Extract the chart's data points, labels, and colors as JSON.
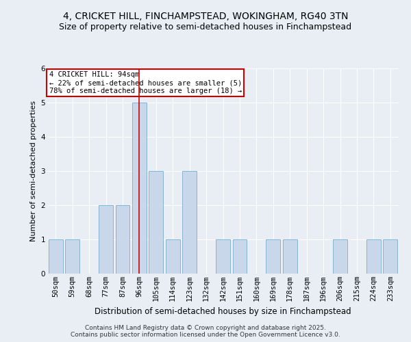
{
  "title1": "4, CRICKET HILL, FINCHAMPSTEAD, WOKINGHAM, RG40 3TN",
  "title2": "Size of property relative to semi-detached houses in Finchampstead",
  "xlabel": "Distribution of semi-detached houses by size in Finchampstead",
  "ylabel": "Number of semi-detached properties",
  "categories": [
    "50sqm",
    "59sqm",
    "68sqm",
    "77sqm",
    "87sqm",
    "96sqm",
    "105sqm",
    "114sqm",
    "123sqm",
    "132sqm",
    "142sqm",
    "151sqm",
    "160sqm",
    "169sqm",
    "178sqm",
    "187sqm",
    "196sqm",
    "206sqm",
    "215sqm",
    "224sqm",
    "233sqm"
  ],
  "values": [
    1,
    1,
    0,
    2,
    2,
    5,
    3,
    1,
    3,
    0,
    1,
    1,
    0,
    1,
    1,
    0,
    0,
    1,
    0,
    1,
    1
  ],
  "highlight_index": 5,
  "bar_color": "#c8d8ea",
  "bar_edge_color": "#7aaac8",
  "highlight_line_color": "#cc0000",
  "annotation_text": "4 CRICKET HILL: 94sqm\n← 22% of semi-detached houses are smaller (5)\n78% of semi-detached houses are larger (18) →",
  "annotation_box_facecolor": "#ffffff",
  "annotation_box_edgecolor": "#cc0000",
  "ylim": [
    0,
    6
  ],
  "yticks": [
    0,
    1,
    2,
    3,
    4,
    5,
    6
  ],
  "footer_text": "Contains HM Land Registry data © Crown copyright and database right 2025.\nContains public sector information licensed under the Open Government Licence v3.0.",
  "background_color": "#e8eef4",
  "plot_background": "#e8eef4",
  "grid_color": "#ffffff",
  "title1_fontsize": 10,
  "title2_fontsize": 9,
  "xlabel_fontsize": 8.5,
  "ylabel_fontsize": 8,
  "tick_fontsize": 7.5,
  "annotation_fontsize": 7.5,
  "footer_fontsize": 6.5
}
